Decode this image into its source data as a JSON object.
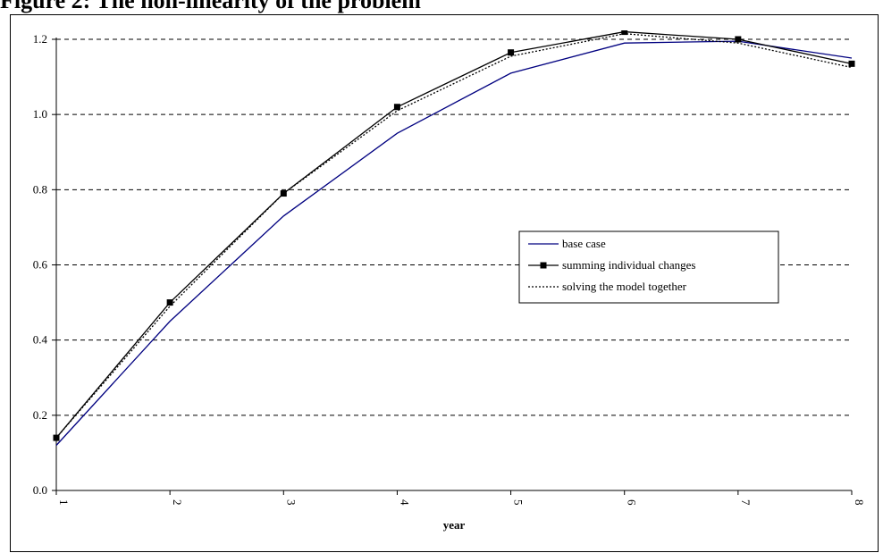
{
  "figure_title": "Figure 2: The non-linearity of the problem",
  "chart_data": {
    "type": "line",
    "title": "Figure 2: The non-linearity of the problem",
    "xlabel": "year",
    "ylabel": "",
    "x": [
      1,
      2,
      3,
      4,
      5,
      6,
      7,
      8
    ],
    "x_tick_labels": [
      "1",
      "2",
      "3",
      "4",
      "5",
      "6",
      "7",
      "8"
    ],
    "y_tick_labels": [
      "0.0",
      "0.2",
      "0.4",
      "0.6",
      "0.8",
      "1.0",
      "1.2"
    ],
    "ylim": [
      0,
      1.2
    ],
    "xlim": [
      1,
      8
    ],
    "grid": "horizontal dashed",
    "legend_position": "center-right",
    "series": [
      {
        "name": "base case",
        "color": "#000080",
        "style": "solid",
        "values": [
          0.12,
          0.45,
          0.73,
          0.95,
          1.11,
          1.19,
          1.195,
          1.15
        ]
      },
      {
        "name": "summing individual changes",
        "color": "#000000",
        "style": "solid-markers",
        "values": [
          0.14,
          0.5,
          0.79,
          1.02,
          1.165,
          1.22,
          1.2,
          1.135
        ]
      },
      {
        "name": "solving the model together",
        "color": "#000000",
        "style": "dotted",
        "values": [
          0.14,
          0.49,
          0.79,
          1.01,
          1.155,
          1.215,
          1.19,
          1.125
        ]
      }
    ]
  }
}
